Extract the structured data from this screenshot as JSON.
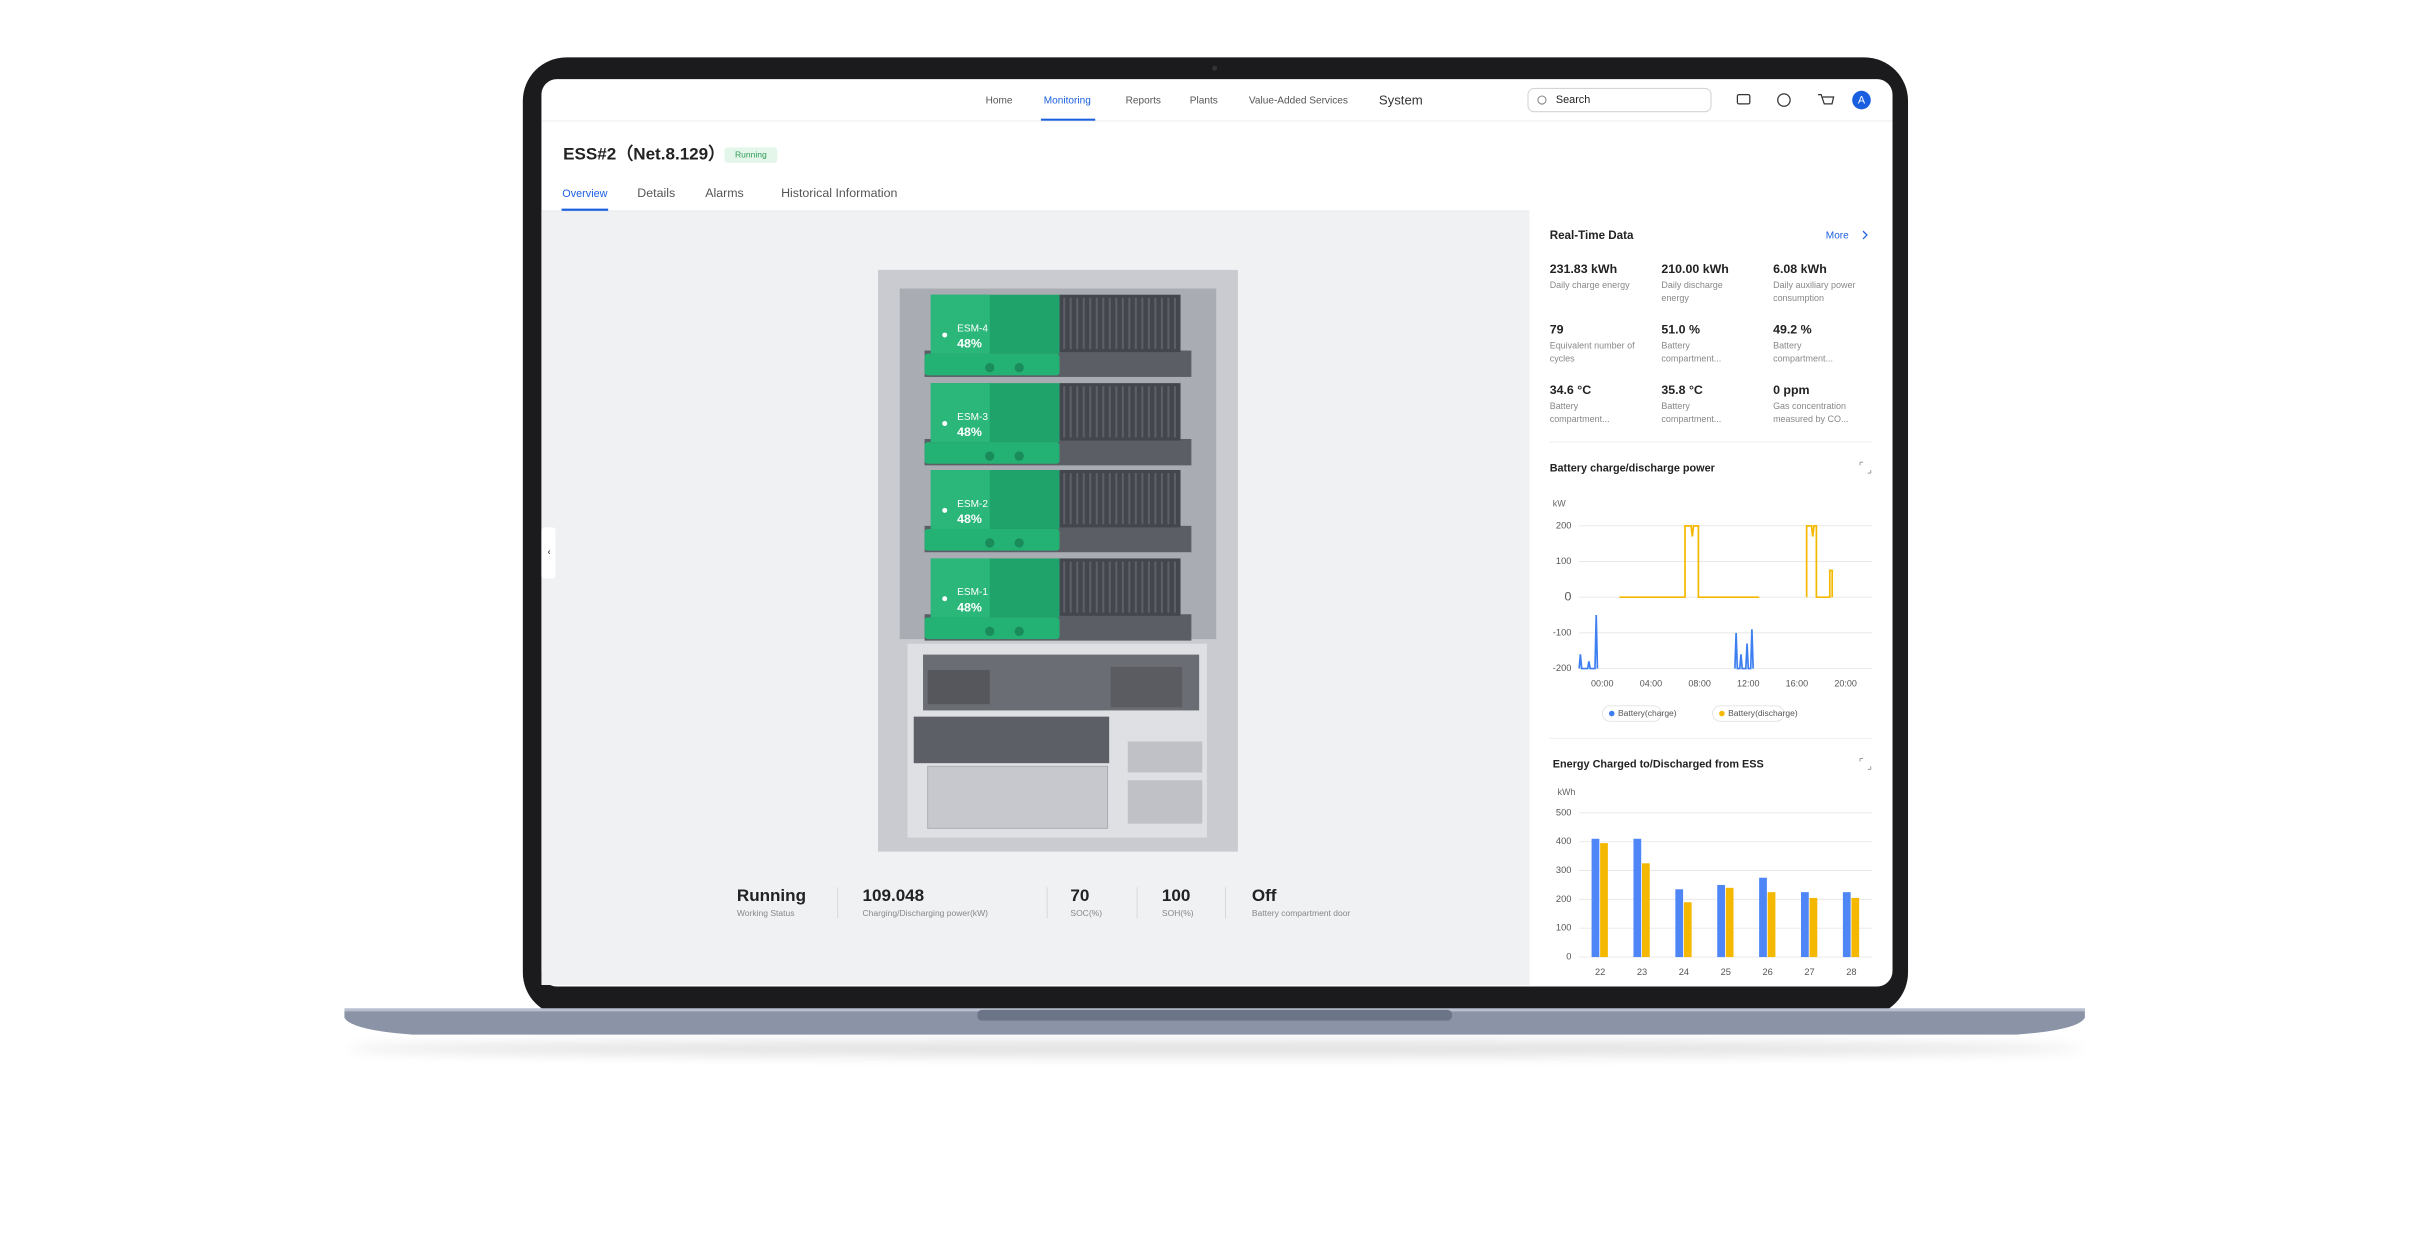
{
  "nav": {
    "items": [
      "Home",
      "Monitoring",
      "Reports",
      "Plants",
      "Value-Added Services",
      "System"
    ],
    "search_placeholder": "Search",
    "avatar": "A"
  },
  "header": {
    "title": "ESS#2（Net.8.129）",
    "status": "Running"
  },
  "tabs": [
    "Overview",
    "Details",
    "Alarms",
    "Historical Information"
  ],
  "rack": {
    "modules": [
      {
        "name": "ESM-4",
        "soc": "48%"
      },
      {
        "name": "ESM-3",
        "soc": "48%"
      },
      {
        "name": "ESM-2",
        "soc": "48%"
      },
      {
        "name": "ESM-1",
        "soc": "48%"
      }
    ]
  },
  "status": [
    {
      "value": "Running",
      "label": "Working Status"
    },
    {
      "value": "109.048",
      "label": "Charging/Discharging power(kW)"
    },
    {
      "value": "70",
      "label": "SOC(%)"
    },
    {
      "value": "100",
      "label": "SOH(%)"
    },
    {
      "value": "Off",
      "label": "Battery compartment door"
    }
  ],
  "realtime": {
    "title": "Real-Time Data",
    "more": "More",
    "items": [
      {
        "value": "231.83 kWh",
        "label": [
          "Daily charge energy"
        ]
      },
      {
        "value": "210.00 kWh",
        "label": [
          "Daily discharge",
          "energy"
        ]
      },
      {
        "value": "6.08 kWh",
        "label": [
          "Daily auxiliary power",
          "consumption"
        ]
      },
      {
        "value": "79",
        "label": [
          "Equivalent number of",
          "cycles"
        ]
      },
      {
        "value": "51.0 %",
        "label": [
          "Battery",
          "compartment..."
        ]
      },
      {
        "value": "49.2 %",
        "label": [
          "Battery",
          "compartment..."
        ]
      },
      {
        "value": "34.6 °C",
        "label": [
          "Battery",
          "compartment..."
        ]
      },
      {
        "value": "35.8 °C",
        "label": [
          "Battery",
          "compartment..."
        ]
      },
      {
        "value": "0 ppm",
        "label": [
          "Gas concentration",
          "measured by CO..."
        ]
      }
    ]
  },
  "chart_data": [
    {
      "type": "line",
      "title": "Battery charge/discharge power",
      "y_label": "kW",
      "xlim": [
        -1.9,
        22.2
      ],
      "ylim": [
        -200,
        200
      ],
      "yticks": [
        -200,
        -100,
        0,
        100,
        200
      ],
      "xticks": [
        {
          "value": 0,
          "label": "00:00"
        },
        {
          "value": 4,
          "label": "04:00"
        },
        {
          "value": 8,
          "label": "08:00"
        },
        {
          "value": 12,
          "label": "12:00"
        },
        {
          "value": 16,
          "label": "16:00"
        },
        {
          "value": 20,
          "label": "20:00"
        }
      ],
      "grid": true,
      "series": [
        {
          "name": "Battery(charge)",
          "color": "#3d7ff0",
          "x": [
            -1.9,
            -1.8,
            -1.7,
            -1.2,
            -1.1,
            -1.0,
            -0.6,
            -0.5,
            -0.4,
            5.0,
            10.9,
            11.0,
            11.1,
            11.3,
            11.4,
            11.5,
            11.8,
            11.9,
            12.0,
            12.2,
            12.3,
            12.4
          ],
          "values": [
            -200,
            -160,
            -200,
            -200,
            -180,
            -200,
            -200,
            -50,
            -200,
            null,
            -200,
            -100,
            -200,
            -200,
            -160,
            -200,
            -200,
            -130,
            -200,
            -200,
            -90,
            -200
          ]
        },
        {
          "name": "Battery(discharge)",
          "color": "#f5b800",
          "x": [
            1.4,
            6.8,
            6.8,
            7.3,
            7.4,
            7.5,
            7.9,
            7.9,
            12.9,
            14.9,
            16.8,
            16.8,
            17.2,
            17.3,
            17.4,
            17.6,
            17.6,
            18.7,
            18.7,
            18.9,
            18.9
          ],
          "values": [
            0,
            0,
            200,
            200,
            170,
            200,
            200,
            0,
            0,
            null,
            0,
            200,
            200,
            170,
            200,
            200,
            0,
            0,
            75,
            75,
            0
          ]
        }
      ]
    },
    {
      "type": "bar",
      "title": "Energy Charged to/Discharged from ESS",
      "y_label": "kWh",
      "categories": [
        "22",
        "23",
        "24",
        "25",
        "26",
        "27",
        "28"
      ],
      "ylim": [
        0,
        500
      ],
      "yticks": [
        0,
        100,
        200,
        300,
        400,
        500
      ],
      "grid": true,
      "series": [
        {
          "color": "#4f86f7",
          "values": [
            410,
            410,
            235,
            250,
            275,
            225,
            225
          ]
        },
        {
          "color": "#f5b800",
          "values": [
            395,
            325,
            190,
            240,
            225,
            205,
            205
          ]
        }
      ]
    }
  ]
}
